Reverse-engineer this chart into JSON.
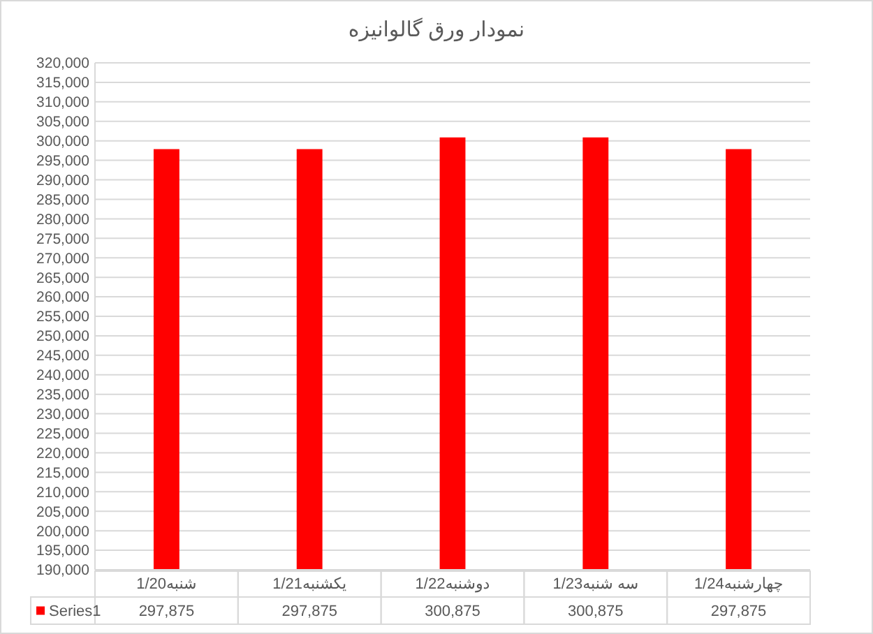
{
  "chart_data": {
    "type": "bar",
    "title": "نمودار ورق گالوانیزه",
    "categories": [
      "شنبه1/20",
      "یکشنبه1/21",
      "دوشنبه1/22",
      "سه شنبه1/23",
      "چهارشنبه1/24"
    ],
    "series": [
      {
        "name": "Series1",
        "color": "#ff0000",
        "values": [
          297875,
          297875,
          300875,
          300875,
          297875
        ],
        "value_labels": [
          "297,875",
          "297,875",
          "300,875",
          "300,875",
          "297,875"
        ]
      }
    ],
    "ylim": [
      190000,
      320000
    ],
    "yticks": [
      {
        "value": 190000,
        "label": "190,000"
      },
      {
        "value": 195000,
        "label": "195,000"
      },
      {
        "value": 200000,
        "label": "200,000"
      },
      {
        "value": 205000,
        "label": "205,000"
      },
      {
        "value": 210000,
        "label": "210,000"
      },
      {
        "value": 215000,
        "label": "215,000"
      },
      {
        "value": 220000,
        "label": "220,000"
      },
      {
        "value": 225000,
        "label": "225,000"
      },
      {
        "value": 230000,
        "label": "230,000"
      },
      {
        "value": 235000,
        "label": "235,000"
      },
      {
        "value": 240000,
        "label": "240,000"
      },
      {
        "value": 245000,
        "label": "245,000"
      },
      {
        "value": 250000,
        "label": "250,000"
      },
      {
        "value": 255000,
        "label": "255,000"
      },
      {
        "value": 260000,
        "label": "260,000"
      },
      {
        "value": 265000,
        "label": "265,000"
      },
      {
        "value": 270000,
        "label": "270,000"
      },
      {
        "value": 275000,
        "label": "275,000"
      },
      {
        "value": 280000,
        "label": "280,000"
      },
      {
        "value": 285000,
        "label": "285,000"
      },
      {
        "value": 290000,
        "label": "290,000"
      },
      {
        "value": 295000,
        "label": "295,000"
      },
      {
        "value": 300000,
        "label": "300,000"
      },
      {
        "value": 305000,
        "label": "305,000"
      },
      {
        "value": 310000,
        "label": "310,000"
      },
      {
        "value": 315000,
        "label": "315,000"
      },
      {
        "value": 320000,
        "label": "320,000"
      }
    ],
    "grid": true,
    "legend": "bottom"
  }
}
